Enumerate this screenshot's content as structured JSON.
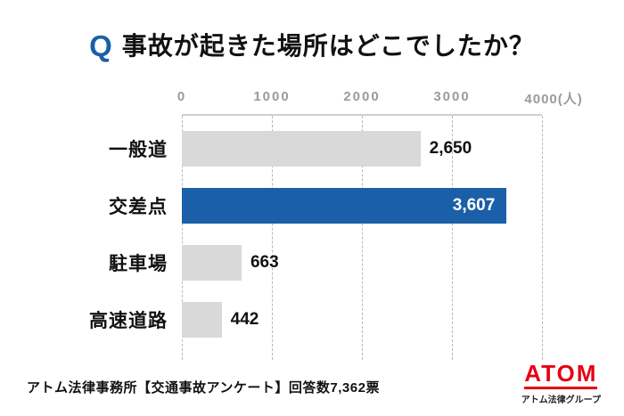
{
  "title": {
    "q_mark": "Q",
    "text": "事故が起きた場所はどこでしたか？"
  },
  "chart_data": {
    "type": "bar",
    "orientation": "horizontal",
    "title": "事故が起きた場所はどこでしたか？",
    "categories": [
      "一般道",
      "交差点",
      "駐車場",
      "高速道路"
    ],
    "values": [
      2650,
      3607,
      663,
      442
    ],
    "value_labels": [
      "2,650",
      "3,607",
      "663",
      "442"
    ],
    "highlight_index": 1,
    "xlim": [
      0,
      4000
    ],
    "x_tick_labels": [
      "0",
      "1000",
      "2000",
      "3000",
      "4000(人)"
    ],
    "grid": "dashed-vertical",
    "legend": "none",
    "bar_color": "#d9d9d9",
    "highlight_color": "#1a5fa8"
  },
  "footer": {
    "source": "アトム法律事務所【交通事故アンケート】回答数7,362票"
  },
  "logo": {
    "brand": "ATOM",
    "subtitle": "アトム法律グループ",
    "color": "#e60012"
  }
}
